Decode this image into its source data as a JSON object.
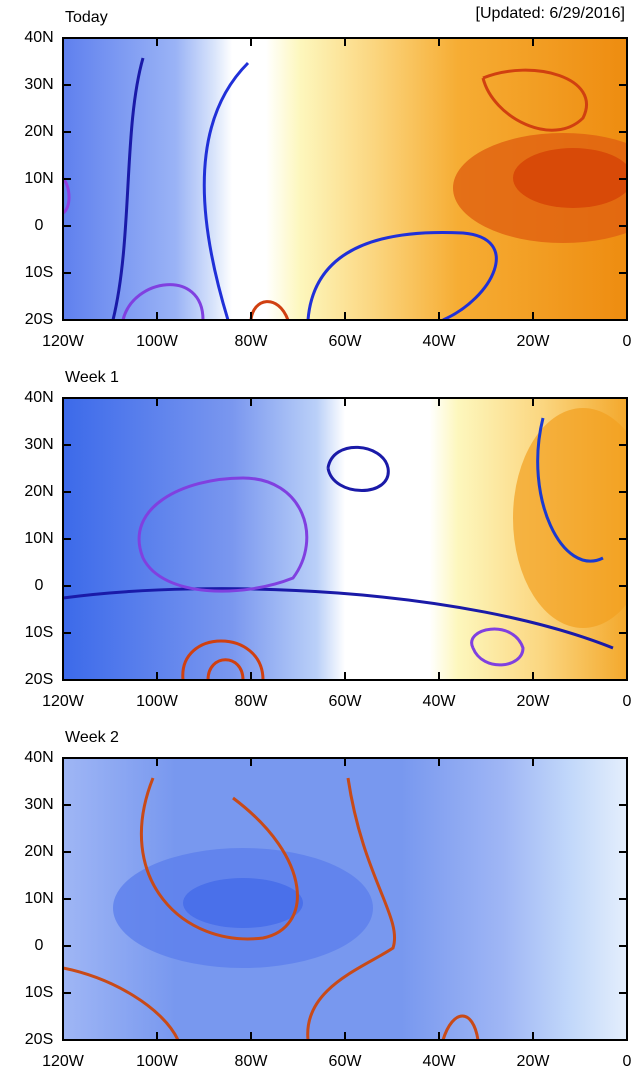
{
  "panels": [
    {
      "title": "Today",
      "note": "[Updated: 6/29/2016]"
    },
    {
      "title": "Week 1"
    },
    {
      "title": "Week 2"
    }
  ],
  "axes": {
    "xlim": [
      -120,
      0
    ],
    "ylim": [
      -20,
      40
    ],
    "xticks": [
      {
        "value": -120,
        "label": "120W"
      },
      {
        "value": -100,
        "label": "100W"
      },
      {
        "value": -80,
        "label": "80W"
      },
      {
        "value": -60,
        "label": "60W"
      },
      {
        "value": -40,
        "label": "40W"
      },
      {
        "value": -20,
        "label": "20W"
      },
      0
    ],
    "yticks": [
      {
        "value": 40,
        "label": "40N"
      },
      {
        "value": 30,
        "label": "30N"
      },
      {
        "value": 20,
        "label": "20N"
      },
      {
        "value": 10,
        "label": "10N"
      },
      0,
      {
        "value": -10,
        "label": "10S"
      },
      {
        "value": -20,
        "label": "20S"
      }
    ]
  }
}
